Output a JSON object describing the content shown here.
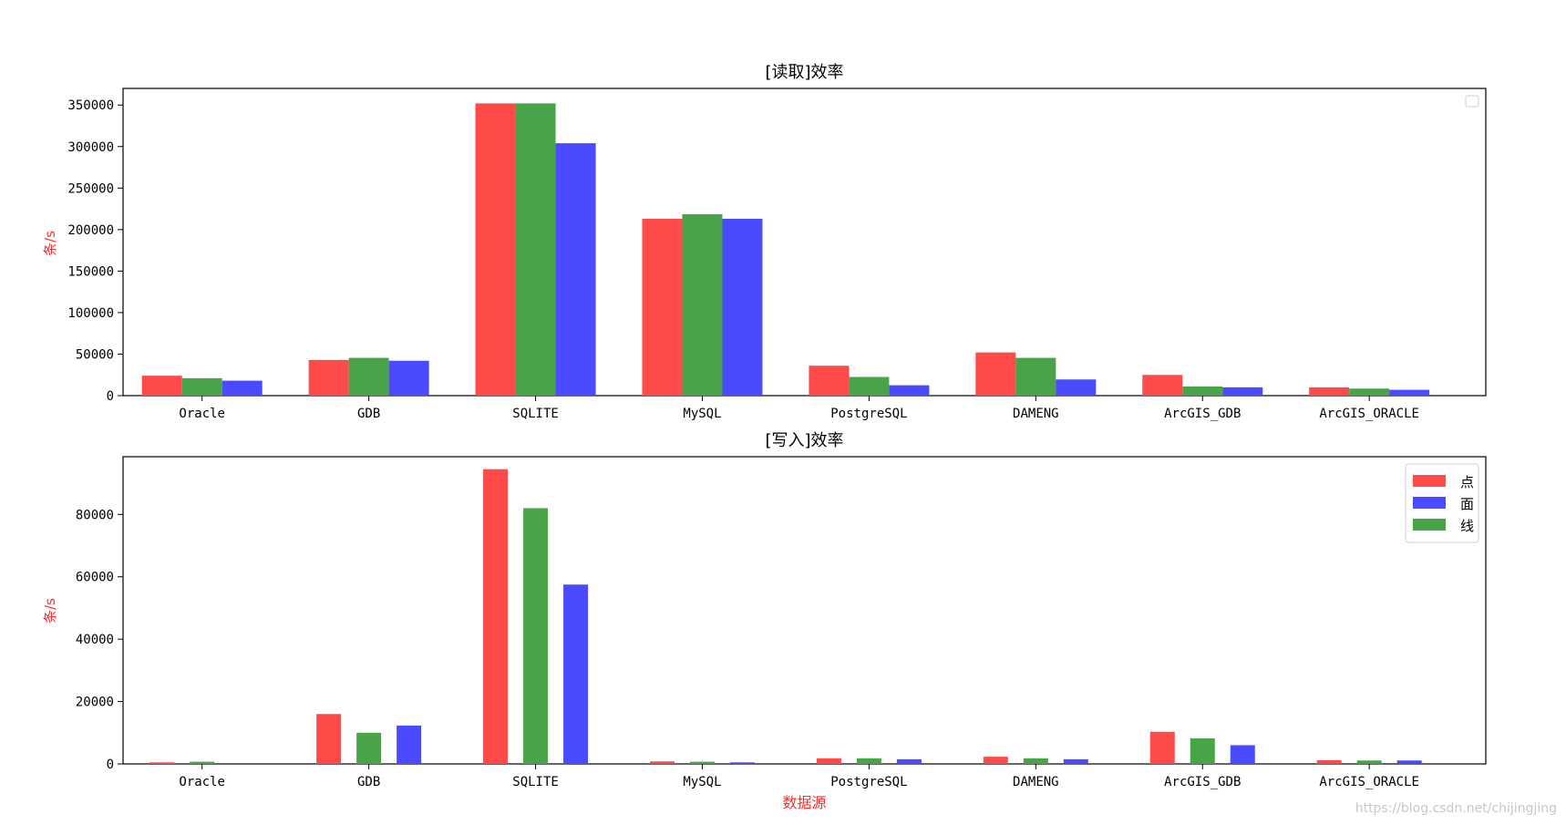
{
  "colors": {
    "red": "#ff4a4a",
    "green": "#49a349",
    "blue": "#4a4aff",
    "ylabel": "#ff2b2b"
  },
  "watermark": "https://blog.csdn.net/chijingjing",
  "chart_data": [
    {
      "type": "bar",
      "title": "[读取]效率",
      "ylabel": "条/s",
      "xlabel": "",
      "ylim": [
        0,
        370000
      ],
      "yticks": [
        0,
        50000,
        100000,
        150000,
        200000,
        250000,
        300000,
        350000
      ],
      "categories": [
        "Oracle",
        "GDB",
        "SQLITE",
        "MySQL",
        "PostgreSQL",
        "DAMENG",
        "ArcGIS_GDB",
        "ArcGIS_ORACLE"
      ],
      "legend": {
        "position": "top-right",
        "entries": []
      },
      "series": [
        {
          "color": "#ff4a4a",
          "values": [
            24000,
            43000,
            352000,
            213000,
            36000,
            52000,
            25000,
            10000
          ]
        },
        {
          "color": "#49a349",
          "values": [
            21000,
            45500,
            352000,
            218500,
            22500,
            45500,
            11000,
            8500
          ]
        },
        {
          "color": "#4a4aff",
          "values": [
            18000,
            42000,
            304000,
            213000,
            12500,
            19500,
            10000,
            7000
          ]
        }
      ]
    },
    {
      "type": "bar",
      "title": "[写入]效率",
      "ylabel": "条/s",
      "xlabel": "数据源",
      "ylim": [
        0,
        98500
      ],
      "yticks": [
        0,
        20000,
        40000,
        60000,
        80000
      ],
      "categories": [
        "Oracle",
        "GDB",
        "SQLITE",
        "MySQL",
        "PostgreSQL",
        "DAMENG",
        "ArcGIS_GDB",
        "ArcGIS_ORACLE"
      ],
      "legend": {
        "position": "top-right",
        "entries": [
          "点",
          "面",
          "线"
        ]
      },
      "series": [
        {
          "name": "点",
          "color": "#ff4a4a",
          "values": [
            500,
            16000,
            94500,
            800,
            1800,
            2300,
            10300,
            1200
          ]
        },
        {
          "name": "线",
          "color": "#49a349",
          "values": [
            700,
            10000,
            82000,
            700,
            1800,
            1800,
            8200,
            1100
          ]
        },
        {
          "name": "面",
          "color": "#4a4aff",
          "values": [
            0,
            12300,
            57500,
            500,
            1500,
            1500,
            6000,
            1100
          ]
        }
      ]
    }
  ]
}
